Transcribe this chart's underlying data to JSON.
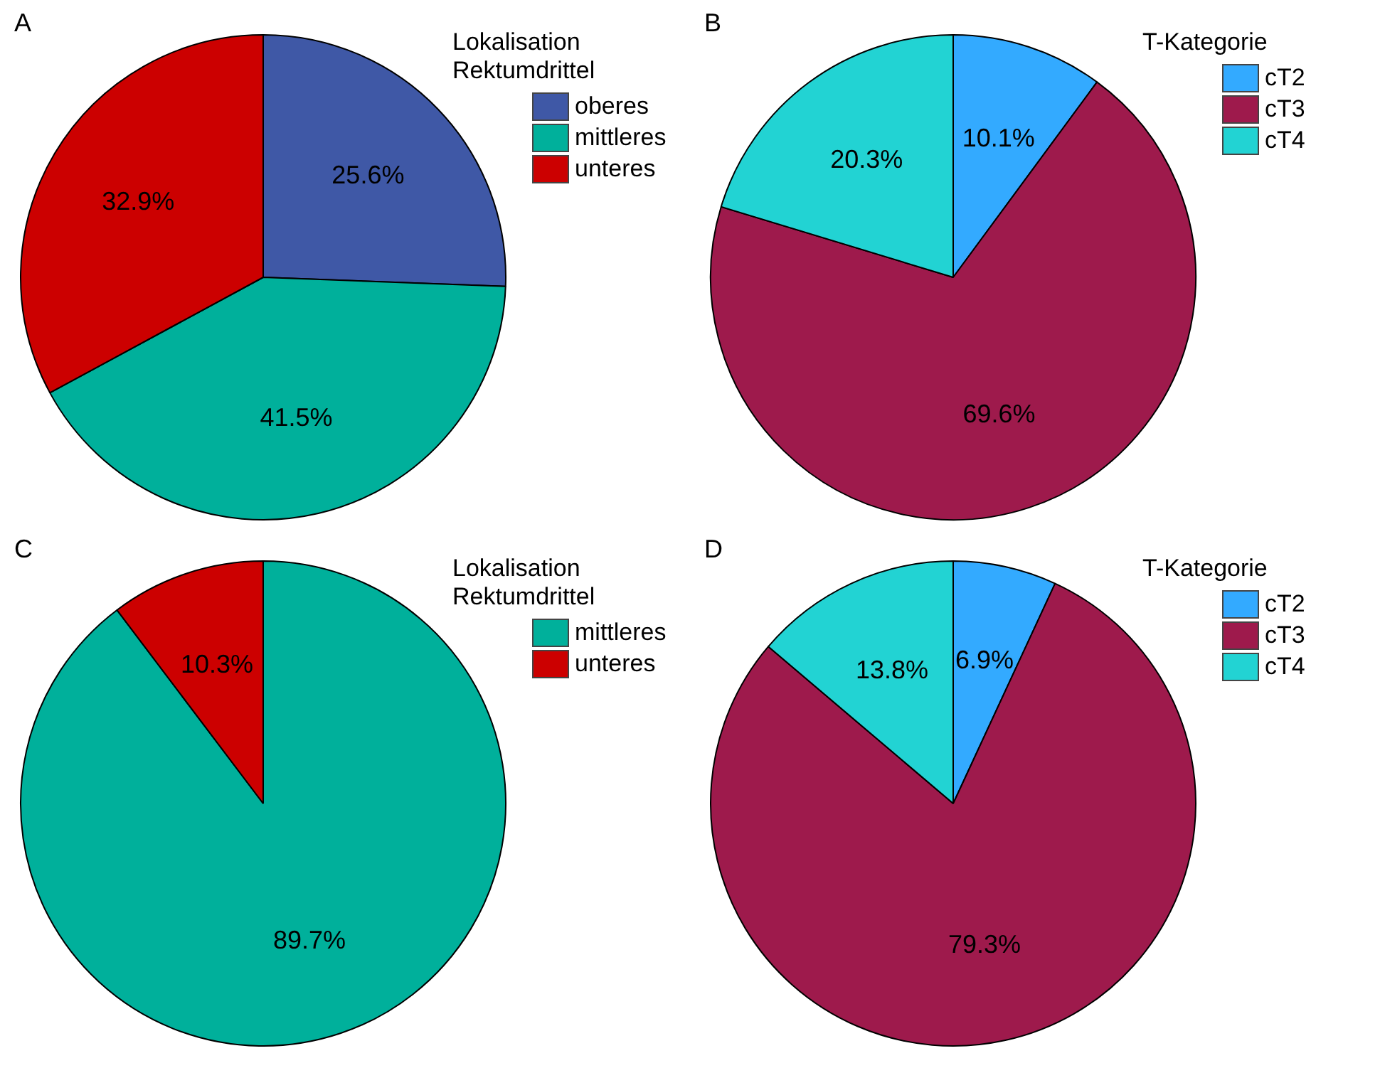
{
  "chart_data": [
    {
      "type": "pie",
      "title": "A",
      "legend_title": "Lokalisation\nRektumdrittel",
      "legend": "top right",
      "categories": [
        "oberes",
        "mittleres",
        "unteres"
      ],
      "values": [
        25.6,
        41.5,
        32.9
      ],
      "value_labels": [
        "25.6%",
        "41.5%",
        "32.9%"
      ],
      "colors": [
        "#3f58a6",
        "#00b09b",
        "#cc0000"
      ]
    },
    {
      "type": "pie",
      "title": "B",
      "legend_title": "T-Kategorie",
      "legend": "top right",
      "categories": [
        "cT2",
        "cT3",
        "cT4"
      ],
      "values": [
        10.1,
        69.6,
        20.3
      ],
      "value_labels": [
        "10.1%",
        "69.6%",
        "20.3%"
      ],
      "colors": [
        "#33aaff",
        "#9e1a4c",
        "#22d3d3"
      ]
    },
    {
      "type": "pie",
      "title": "C",
      "legend_title": "Lokalisation\nRektumdrittel",
      "legend": "top right",
      "categories": [
        "mittleres",
        "unteres"
      ],
      "values": [
        89.7,
        10.3
      ],
      "value_labels": [
        "89.7%",
        "10.3%"
      ],
      "colors": [
        "#00b09b",
        "#cc0000"
      ]
    },
    {
      "type": "pie",
      "title": "D",
      "legend_title": "T-Kategorie",
      "legend": "top right",
      "categories": [
        "cT2",
        "cT3",
        "cT4"
      ],
      "values": [
        6.9,
        79.3,
        13.8
      ],
      "value_labels": [
        "6.9%",
        "79.3%",
        "13.8%"
      ],
      "colors": [
        "#33aaff",
        "#9e1a4c",
        "#22d3d3"
      ]
    }
  ]
}
